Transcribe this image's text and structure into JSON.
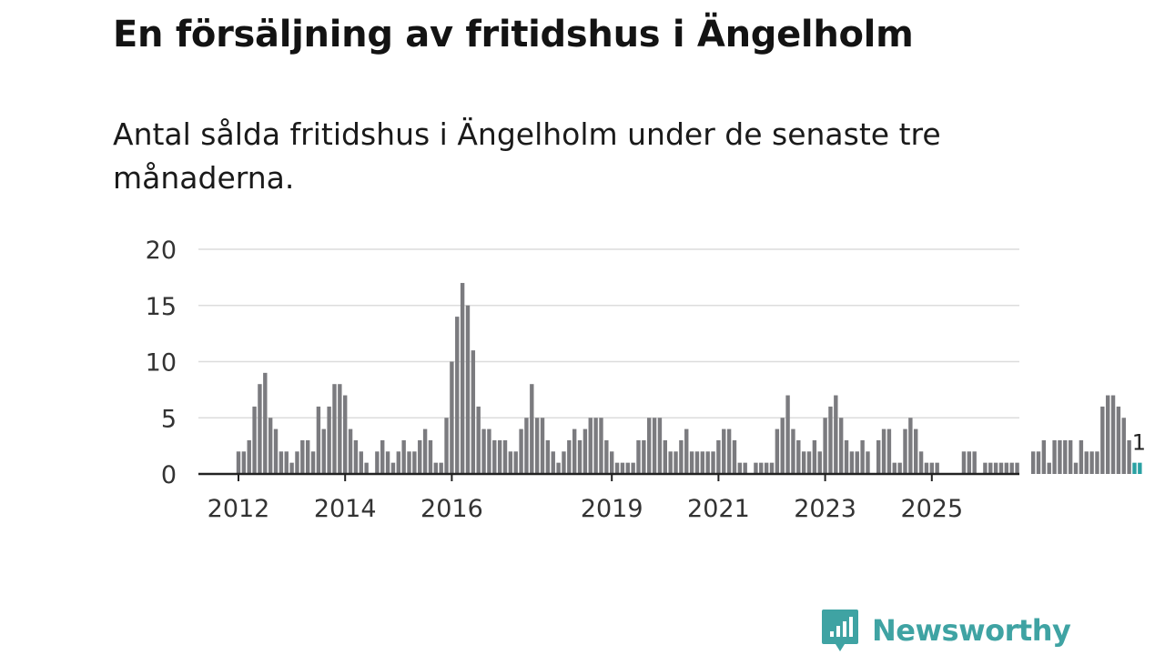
{
  "header": {
    "title": "En försäljning av fritidshus i Ängelholm",
    "subtitle": "Antal sålda fritidshus i Ängelholm under de senaste tre månaderna."
  },
  "brand": {
    "name": "Newsworthy",
    "color": "#3fa3a3"
  },
  "colors": {
    "bar": "#7b7b7f",
    "highlight": "#2aa1a3",
    "grid": "#dcdcdc",
    "axis": "#222222"
  },
  "chart_data": {
    "type": "bar",
    "title": "En försäljning av fritidshus i Ängelholm",
    "xlabel": "",
    "ylabel": "",
    "ylim": [
      0,
      20
    ],
    "yticks": [
      0,
      5,
      10,
      15,
      20
    ],
    "xtick_labels": [
      {
        "label": "2012",
        "index": 0
      },
      {
        "label": "2014",
        "index": 20
      },
      {
        "label": "2016",
        "index": 40
      },
      {
        "label": "2019",
        "index": 70
      },
      {
        "label": "2021",
        "index": 90
      },
      {
        "label": "2023",
        "index": 110
      },
      {
        "label": "2025",
        "index": 130
      }
    ],
    "series": [
      {
        "name": "Antal sålda fritidshus",
        "values": [
          2,
          2,
          3,
          6,
          8,
          9,
          5,
          4,
          2,
          2,
          1,
          2,
          3,
          3,
          2,
          6,
          4,
          6,
          8,
          8,
          7,
          4,
          3,
          2,
          1,
          0,
          2,
          3,
          2,
          1,
          2,
          3,
          2,
          2,
          3,
          4,
          3,
          1,
          1,
          5,
          10,
          14,
          17,
          15,
          11,
          6,
          4,
          4,
          3,
          3,
          3,
          2,
          2,
          4,
          5,
          8,
          5,
          5,
          3,
          2,
          1,
          2,
          3,
          4,
          3,
          4,
          5,
          5,
          5,
          3,
          2,
          1,
          1,
          1,
          1,
          3,
          3,
          5,
          5,
          5,
          3,
          2,
          2,
          3,
          4,
          2,
          2,
          2,
          2,
          2,
          3,
          4,
          4,
          3,
          1,
          1,
          0,
          1,
          1,
          1,
          1,
          4,
          5,
          7,
          4,
          3,
          2,
          2,
          3,
          2,
          5,
          6,
          7,
          5,
          3,
          2,
          2,
          3,
          2,
          0,
          3,
          4,
          4,
          1,
          1,
          4,
          5,
          4,
          2,
          1,
          1,
          1,
          0,
          0,
          0,
          0,
          2,
          2,
          2,
          0,
          1,
          1,
          1,
          1,
          1,
          1,
          1,
          0,
          0,
          2,
          2,
          3,
          1,
          3,
          3,
          3,
          3,
          1,
          3,
          2,
          2,
          2,
          6,
          7,
          7,
          6,
          5,
          3,
          1,
          1
        ]
      }
    ],
    "highlight_last": 2,
    "last_value_label": "1"
  }
}
